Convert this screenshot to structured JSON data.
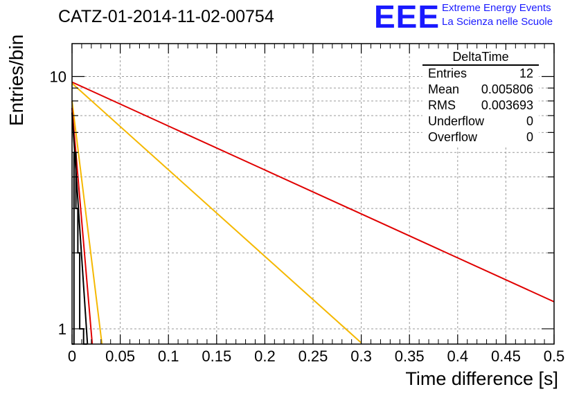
{
  "header": {
    "title": "CATZ-01-2014-11-02-00754",
    "logo_text": "EEE",
    "logo_line1": "Extreme Energy Events",
    "logo_line2": "La Scienza nelle Scuole",
    "logo_color": "#1a1aff"
  },
  "stats_box": {
    "title": "DeltaTime",
    "rows": [
      {
        "label": "Entries",
        "value": "12"
      },
      {
        "label": "Mean",
        "value": "0.005806"
      },
      {
        "label": "RMS",
        "value": "0.003693"
      },
      {
        "label": "Underflow",
        "value": "0"
      },
      {
        "label": "Overflow",
        "value": "0"
      }
    ]
  },
  "chart_data": {
    "type": "line",
    "xlabel": "Time difference [s]",
    "ylabel": "Entries/bin",
    "xlim": [
      0,
      0.5
    ],
    "ylim": [
      0.87,
      13.5
    ],
    "y_scale": "log",
    "grid": true,
    "x_ticks": [
      "0",
      "0.05",
      "0.1",
      "0.15",
      "0.2",
      "0.25",
      "0.3",
      "0.35",
      "0.4",
      "0.45",
      "0.5"
    ],
    "y_ticks": [
      "1",
      "10"
    ],
    "series": [
      {
        "color": "#e00000",
        "x": [
          0.0,
          0.5
        ],
        "y": [
          9.5,
          1.28
        ]
      },
      {
        "color": "#f5b800",
        "x": [
          0.0,
          0.3
        ],
        "y": [
          9.4,
          0.88
        ]
      },
      {
        "color": "#f5b800",
        "x": [
          0.0,
          0.031
        ],
        "y": [
          8.0,
          0.87
        ]
      },
      {
        "color": "#e00000",
        "x": [
          0.0,
          0.021
        ],
        "y": [
          7.5,
          0.87
        ]
      },
      {
        "color": "#000000",
        "x": [
          0.0,
          0.016
        ],
        "y": [
          7.2,
          0.87
        ]
      }
    ],
    "histogram": {
      "color": "#000000",
      "bin_edges": [
        0.0,
        0.002,
        0.004,
        0.006,
        0.008,
        0.01,
        0.012,
        0.014,
        0.016
      ],
      "counts": [
        0,
        5,
        3,
        2,
        1,
        1,
        0,
        0
      ]
    }
  }
}
